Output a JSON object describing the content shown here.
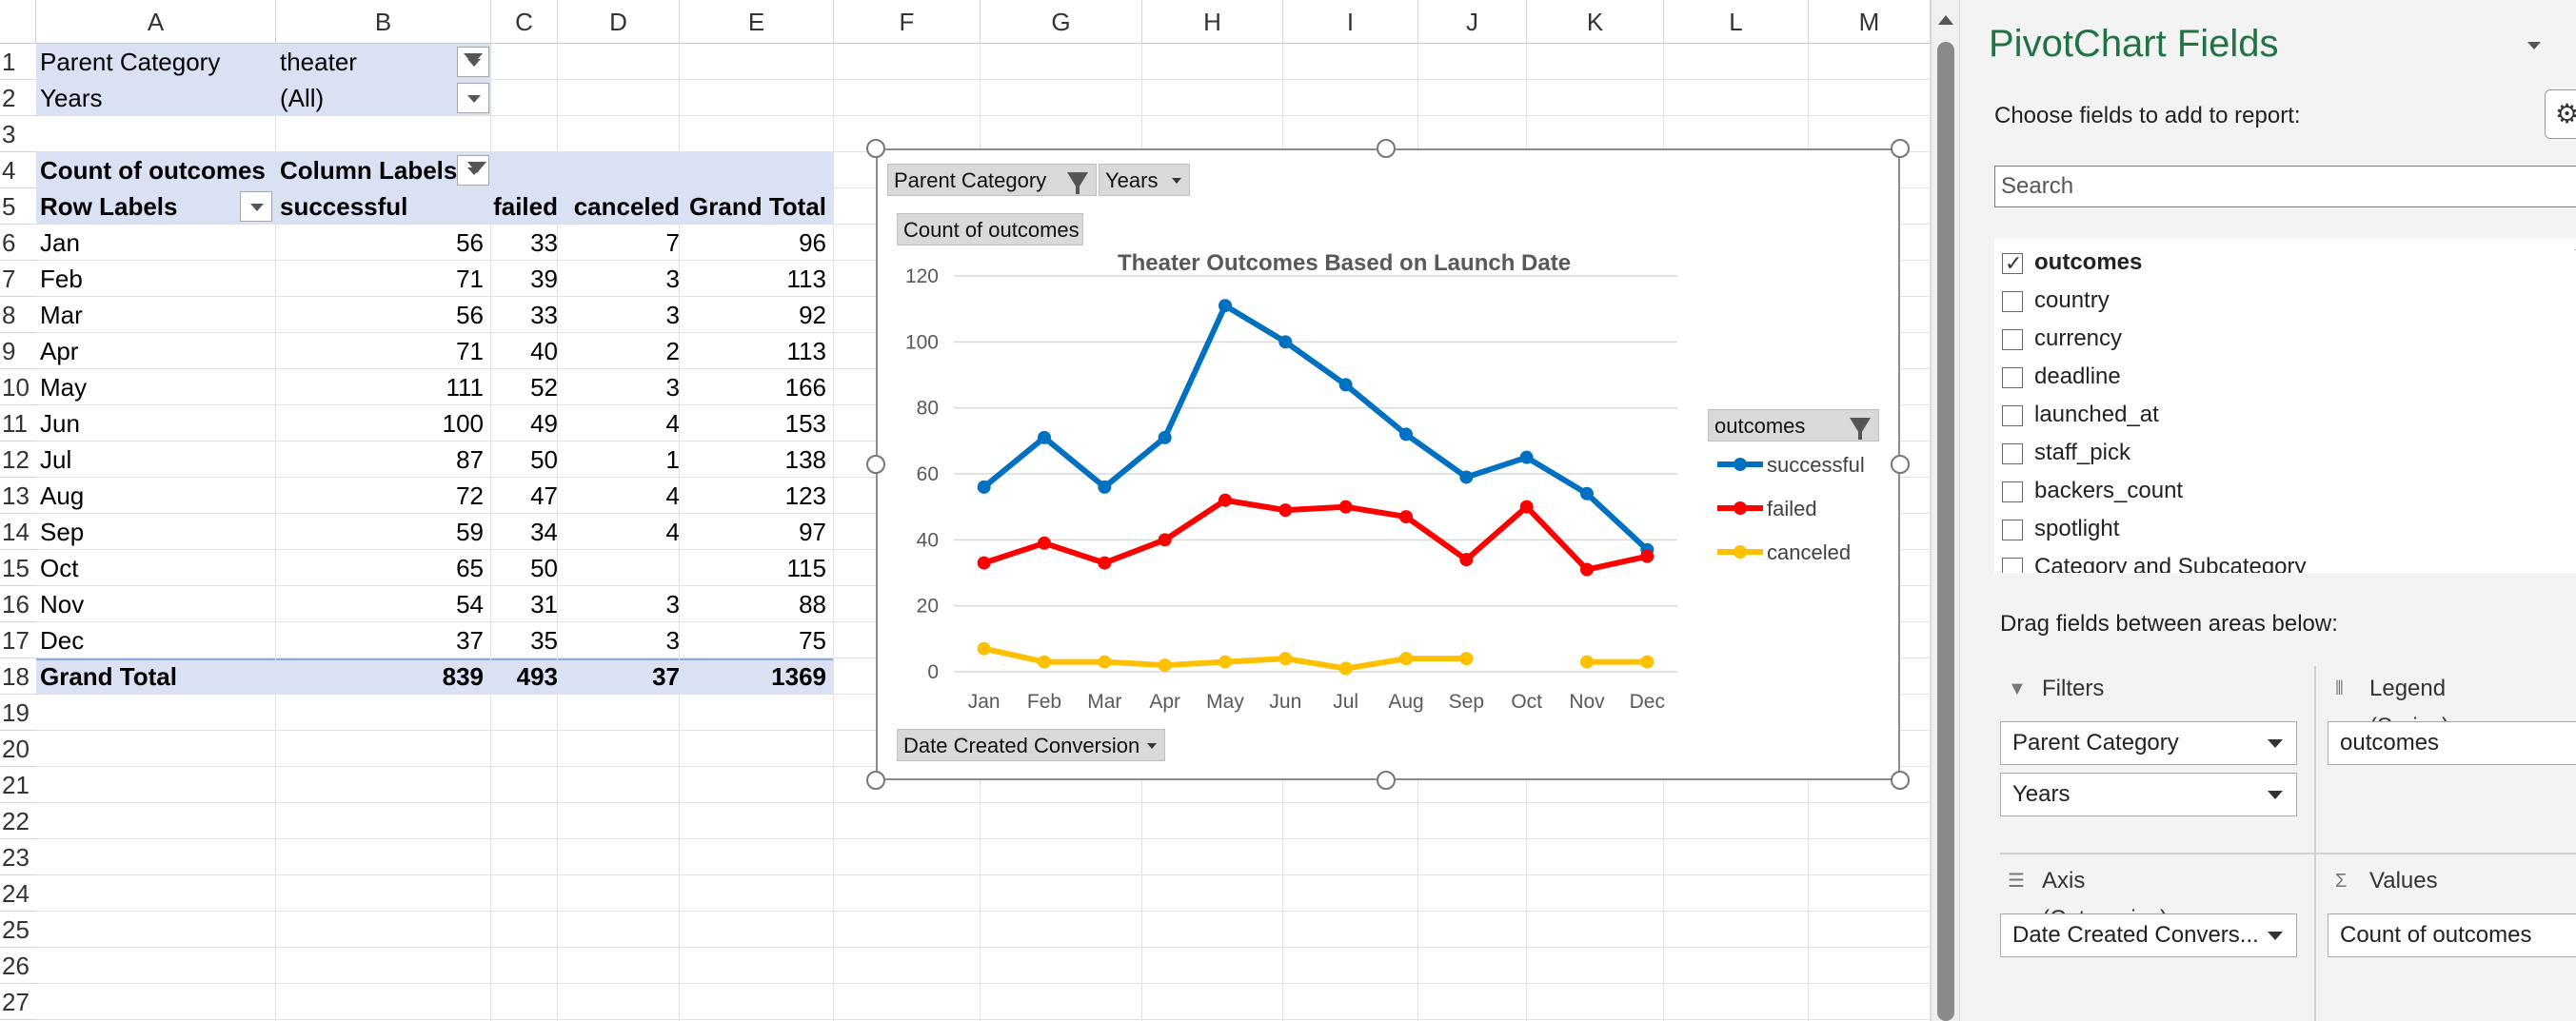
{
  "sheet": {
    "columns": [
      "A",
      "B",
      "C",
      "D",
      "E",
      "F",
      "G",
      "H",
      "I",
      "J",
      "K",
      "L",
      "M"
    ],
    "rows": [
      "1",
      "2",
      "3",
      "4",
      "5",
      "6",
      "7",
      "8",
      "9",
      "10",
      "11",
      "12",
      "13",
      "14",
      "15",
      "16",
      "17",
      "18",
      "19",
      "20",
      "21",
      "22",
      "23",
      "24",
      "25",
      "26",
      "27"
    ],
    "filters": {
      "parent_category_label": "Parent Category",
      "parent_category_value": "theater",
      "years_label": "Years",
      "years_value": "(All)"
    },
    "pivot": {
      "corner_label": "Count of outcomes",
      "column_labels": "Column Labels",
      "row_labels": "Row Labels",
      "headers": [
        "successful",
        "failed",
        "canceled",
        "Grand Total"
      ],
      "rows": [
        {
          "month": "Jan",
          "successful": "56",
          "failed": "33",
          "canceled": "7",
          "total": "96"
        },
        {
          "month": "Feb",
          "successful": "71",
          "failed": "39",
          "canceled": "3",
          "total": "113"
        },
        {
          "month": "Mar",
          "successful": "56",
          "failed": "33",
          "canceled": "3",
          "total": "92"
        },
        {
          "month": "Apr",
          "successful": "71",
          "failed": "40",
          "canceled": "2",
          "total": "113"
        },
        {
          "month": "May",
          "successful": "111",
          "failed": "52",
          "canceled": "3",
          "total": "166"
        },
        {
          "month": "Jun",
          "successful": "100",
          "failed": "49",
          "canceled": "4",
          "total": "153"
        },
        {
          "month": "Jul",
          "successful": "87",
          "failed": "50",
          "canceled": "1",
          "total": "138"
        },
        {
          "month": "Aug",
          "successful": "72",
          "failed": "47",
          "canceled": "4",
          "total": "123"
        },
        {
          "month": "Sep",
          "successful": "59",
          "failed": "34",
          "canceled": "4",
          "total": "97"
        },
        {
          "month": "Oct",
          "successful": "65",
          "failed": "50",
          "canceled": "",
          "total": "115"
        },
        {
          "month": "Nov",
          "successful": "54",
          "failed": "31",
          "canceled": "3",
          "total": "88"
        },
        {
          "month": "Dec",
          "successful": "37",
          "failed": "35",
          "canceled": "3",
          "total": "75"
        }
      ],
      "grand_total": {
        "label": "Grand Total",
        "successful": "839",
        "failed": "493",
        "canceled": "37",
        "total": "1369"
      }
    }
  },
  "chart_buttons": {
    "parent_category": "Parent Category",
    "years": "Years",
    "values": "Count of outcomes",
    "axis": "Date Created Conversion",
    "legend": "outcomes"
  },
  "chart_data": {
    "type": "line",
    "title": "Theater Outcomes Based on Launch Date",
    "categories": [
      "Jan",
      "Feb",
      "Mar",
      "Apr",
      "May",
      "Jun",
      "Jul",
      "Aug",
      "Sep",
      "Oct",
      "Nov",
      "Dec"
    ],
    "ylim": [
      0,
      120
    ],
    "yticks": [
      0,
      20,
      40,
      60,
      80,
      100,
      120
    ],
    "grid": true,
    "legend_position": "right",
    "legend_title": "outcomes",
    "series": [
      {
        "name": "successful",
        "color": "#0070c0",
        "values": [
          56,
          71,
          56,
          71,
          111,
          100,
          87,
          72,
          59,
          65,
          54,
          37
        ]
      },
      {
        "name": "failed",
        "color": "#ff0000",
        "values": [
          33,
          39,
          33,
          40,
          52,
          49,
          50,
          47,
          34,
          50,
          31,
          35
        ]
      },
      {
        "name": "canceled",
        "color": "#ffc000",
        "values": [
          7,
          3,
          3,
          2,
          3,
          4,
          1,
          4,
          4,
          null,
          3,
          3
        ]
      }
    ]
  },
  "pane": {
    "title": "PivotChart Fields",
    "subtitle": "Choose fields to add to report:",
    "search_placeholder": "Search",
    "fields": [
      {
        "label": "outcomes",
        "checked": true
      },
      {
        "label": "country",
        "checked": false
      },
      {
        "label": "currency",
        "checked": false
      },
      {
        "label": "deadline",
        "checked": false
      },
      {
        "label": "launched_at",
        "checked": false
      },
      {
        "label": "staff_pick",
        "checked": false
      },
      {
        "label": "backers_count",
        "checked": false
      },
      {
        "label": "spotlight",
        "checked": false
      },
      {
        "label": "Category and Subcategory",
        "checked": false
      }
    ],
    "drag_label": "Drag fields between areas below:",
    "areas": {
      "filters": {
        "title": "Filters",
        "items": [
          "Parent Category",
          "Years"
        ]
      },
      "legend": {
        "title": "Legend (Series)",
        "items": [
          "outcomes"
        ]
      },
      "axis": {
        "title": "Axis (Categories)",
        "items": [
          "Date Created Convers..."
        ]
      },
      "values": {
        "title": "Values",
        "items": [
          "Count of outcomes"
        ]
      }
    }
  }
}
